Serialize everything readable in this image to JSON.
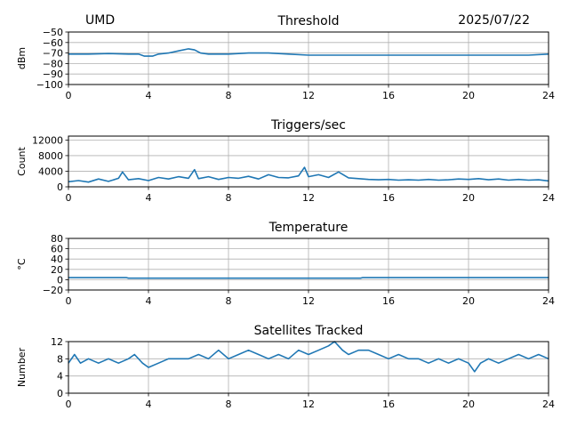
{
  "header": {
    "left": "UMD",
    "right": "2025/07/22"
  },
  "colors": {
    "series": "#1f77b4",
    "grid": "#b0b0b0"
  },
  "chart_data": [
    {
      "id": "threshold",
      "type": "line",
      "title": "Threshold",
      "ylabel": "dBm",
      "xlim": [
        0,
        24
      ],
      "ylim": [
        -100,
        -50
      ],
      "xticks": [
        0,
        4,
        8,
        12,
        16,
        20,
        24
      ],
      "yticks": [
        -100,
        -90,
        -80,
        -70,
        -60,
        -50
      ],
      "grid": true,
      "series": [
        {
          "x": [
            0,
            1,
            2,
            3,
            3.5,
            3.8,
            4.2,
            4.5,
            5,
            5.5,
            6,
            6.3,
            6.6,
            7,
            8,
            9,
            10,
            11,
            12,
            13,
            14,
            15,
            16,
            17,
            18,
            19,
            20,
            21,
            22,
            23,
            24
          ],
          "y": [
            -71,
            -71,
            -70.5,
            -71,
            -71,
            -73,
            -73,
            -71,
            -70,
            -68,
            -66,
            -67,
            -70,
            -71,
            -71,
            -70,
            -70,
            -71,
            -72,
            -72,
            -72,
            -72,
            -72,
            -72,
            -72,
            -72,
            -72,
            -72,
            -72,
            -72,
            -71
          ]
        }
      ]
    },
    {
      "id": "triggers",
      "type": "line",
      "title": "Triggers/sec",
      "ylabel": "Count",
      "xlim": [
        0,
        24
      ],
      "ylim": [
        0,
        13000
      ],
      "xticks": [
        0,
        4,
        8,
        12,
        16,
        20,
        24
      ],
      "yticks": [
        0,
        4000,
        8000,
        12000
      ],
      "grid": true,
      "series": [
        {
          "x": [
            0,
            0.5,
            1,
            1.5,
            2,
            2.5,
            2.7,
            3,
            3.5,
            4,
            4.5,
            5,
            5.5,
            6,
            6.3,
            6.5,
            7,
            7.5,
            8,
            8.5,
            9,
            9.5,
            10,
            10.5,
            11,
            11.5,
            11.8,
            12,
            12.5,
            13,
            13.5,
            14,
            14.5,
            15,
            15.5,
            16,
            16.5,
            17,
            17.5,
            18,
            18.5,
            19,
            19.5,
            20,
            20.5,
            21,
            21.5,
            22,
            22.5,
            23,
            23.5,
            24
          ],
          "y": [
            1300,
            1600,
            1200,
            2000,
            1400,
            2200,
            3800,
            1800,
            2100,
            1600,
            2400,
            2000,
            2600,
            2200,
            4400,
            2100,
            2600,
            1900,
            2400,
            2200,
            2700,
            2000,
            3100,
            2400,
            2300,
            2800,
            5000,
            2600,
            3100,
            2400,
            3800,
            2300,
            2100,
            1900,
            1800,
            1900,
            1700,
            1800,
            1700,
            1900,
            1700,
            1800,
            2000,
            1900,
            2100,
            1800,
            2000,
            1700,
            1900,
            1700,
            1800,
            1500
          ]
        }
      ]
    },
    {
      "id": "temperature",
      "type": "line",
      "title": "Temperature",
      "ylabel": "°C",
      "xlim": [
        0,
        24
      ],
      "ylim": [
        -20,
        80
      ],
      "xticks": [
        0,
        4,
        8,
        12,
        16,
        20,
        24
      ],
      "yticks": [
        -20,
        0,
        20,
        40,
        60,
        80
      ],
      "grid": true,
      "series": [
        {
          "x": [
            0,
            2.9,
            3,
            14.6,
            14.7,
            24
          ],
          "y": [
            4,
            4,
            3,
            3,
            4,
            4
          ]
        }
      ]
    },
    {
      "id": "satellites",
      "type": "line",
      "title": "Satellites Tracked",
      "ylabel": "Number",
      "xlim": [
        0,
        24
      ],
      "ylim": [
        0,
        12
      ],
      "xticks": [
        0,
        4,
        8,
        12,
        16,
        20,
        24
      ],
      "yticks": [
        0,
        4,
        8,
        12
      ],
      "grid": true,
      "series": [
        {
          "x": [
            0,
            0.3,
            0.6,
            1,
            1.5,
            2,
            2.5,
            3,
            3.3,
            3.7,
            4,
            4.5,
            5,
            6,
            6.5,
            7,
            7.5,
            8,
            8.5,
            9,
            9.5,
            10,
            10.5,
            11,
            11.5,
            12,
            12.5,
            13,
            13.3,
            13.7,
            14,
            14.5,
            15,
            15.5,
            16,
            16.5,
            17,
            17.5,
            18,
            18.5,
            19,
            19.5,
            20,
            20.3,
            20.6,
            21,
            21.5,
            22,
            22.5,
            23,
            23.5,
            24
          ],
          "y": [
            7,
            9,
            7,
            8,
            7,
            8,
            7,
            8,
            9,
            7,
            6,
            7,
            8,
            8,
            9,
            8,
            10,
            8,
            9,
            10,
            9,
            8,
            9,
            8,
            10,
            9,
            10,
            11,
            12,
            10,
            9,
            10,
            10,
            9,
            8,
            9,
            8,
            8,
            7,
            8,
            7,
            8,
            7,
            5,
            7,
            8,
            7,
            8,
            9,
            8,
            9,
            8
          ]
        }
      ]
    }
  ]
}
